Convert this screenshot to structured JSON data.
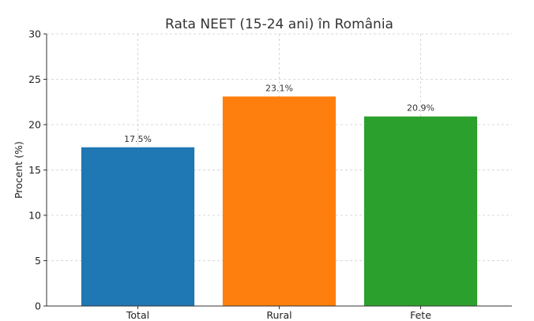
{
  "chart_data": {
    "type": "bar",
    "title": "Rata NEET (15-24 ani) în România",
    "xlabel": "",
    "ylabel": "Procent (%)",
    "ylim": [
      0,
      30
    ],
    "yticks": [
      0,
      5,
      10,
      15,
      20,
      25,
      30
    ],
    "categories": [
      "Total",
      "Rural",
      "Fete"
    ],
    "values": [
      17.5,
      23.1,
      20.9
    ],
    "data_labels": [
      "17.5%",
      "23.1%",
      "20.9%"
    ],
    "colors": [
      "#1f77b4",
      "#ff7f0e",
      "#2ca02c"
    ],
    "grid": true
  }
}
